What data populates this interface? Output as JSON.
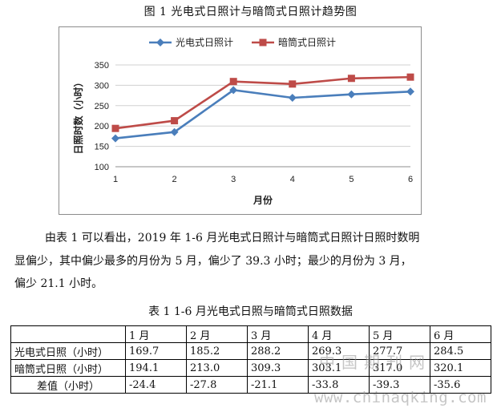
{
  "figure": {
    "title": "图 1   光电式日照计与暗筒式日照计趋势图"
  },
  "chart_data": {
    "type": "line",
    "title": "",
    "xlabel": "月份",
    "ylabel": "日照时数（小时）",
    "x": [
      1,
      2,
      3,
      4,
      5,
      6
    ],
    "ylim": [
      100,
      350
    ],
    "yticks": [
      100,
      150,
      200,
      250,
      300,
      350
    ],
    "grid": "horizontal",
    "legend_position": "top",
    "series": [
      {
        "name": "光电式日照计",
        "values": [
          169.7,
          185.2,
          288.2,
          269.3,
          277.7,
          284.5
        ],
        "color": "#4a7ebb",
        "marker": "diamond"
      },
      {
        "name": "暗筒式日照计",
        "values": [
          194.1,
          213.0,
          309.3,
          303.1,
          317.0,
          320.1
        ],
        "color": "#be4b48",
        "marker": "square"
      }
    ]
  },
  "paragraph": {
    "line1": "由表 1 可以看出，2019 年 1-6 月光电式日照计与暗筒式日照计日照时数明",
    "line2": "显偏少，其中偏少最多的月份为 5 月，偏少了 39.3 小时；最少的月份为 3 月，",
    "line3": "偏少 21.1 小时。"
  },
  "table": {
    "title": "表 1   1-6 月光电式日照与暗筒式日照数据",
    "header": [
      "",
      "1 月",
      "2 月",
      "3 月",
      "4 月",
      "5 月",
      "6 月"
    ],
    "rows": [
      {
        "label": "光电式日照（小时）",
        "values": [
          "169.7",
          "185.2",
          "288.2",
          "269.3",
          "277.7",
          "284.5"
        ]
      },
      {
        "label": "暗筒式日照（小时）",
        "values": [
          "194.1",
          "213.0",
          "309.3",
          "303.1",
          "317.0",
          "320.1"
        ]
      },
      {
        "label": "差值（小时）",
        "values": [
          "-24.4",
          "-27.8",
          "-21.1",
          "-33.8",
          "-39.3",
          "-35.6"
        ]
      }
    ]
  },
  "watermark": {
    "cn": "中国期刊网",
    "url": "www.chinaqking.com"
  }
}
